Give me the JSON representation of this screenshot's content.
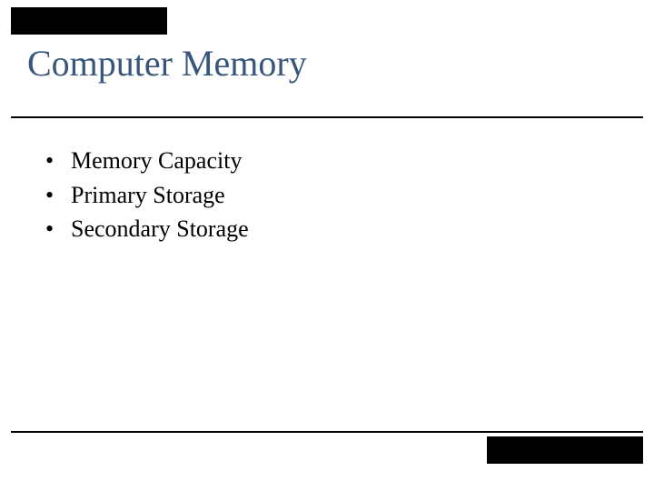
{
  "slide": {
    "title": "Computer Memory",
    "title_color": "#38567d",
    "title_fontsize": 40,
    "bullets": [
      {
        "text": "Memory Capacity"
      },
      {
        "text": "Primary Storage"
      },
      {
        "text": "Secondary Storage"
      }
    ],
    "bullet_fontsize": 26,
    "rule_color": "#000000",
    "accent_bar_color": "#000000",
    "background_color": "#ffffff"
  }
}
